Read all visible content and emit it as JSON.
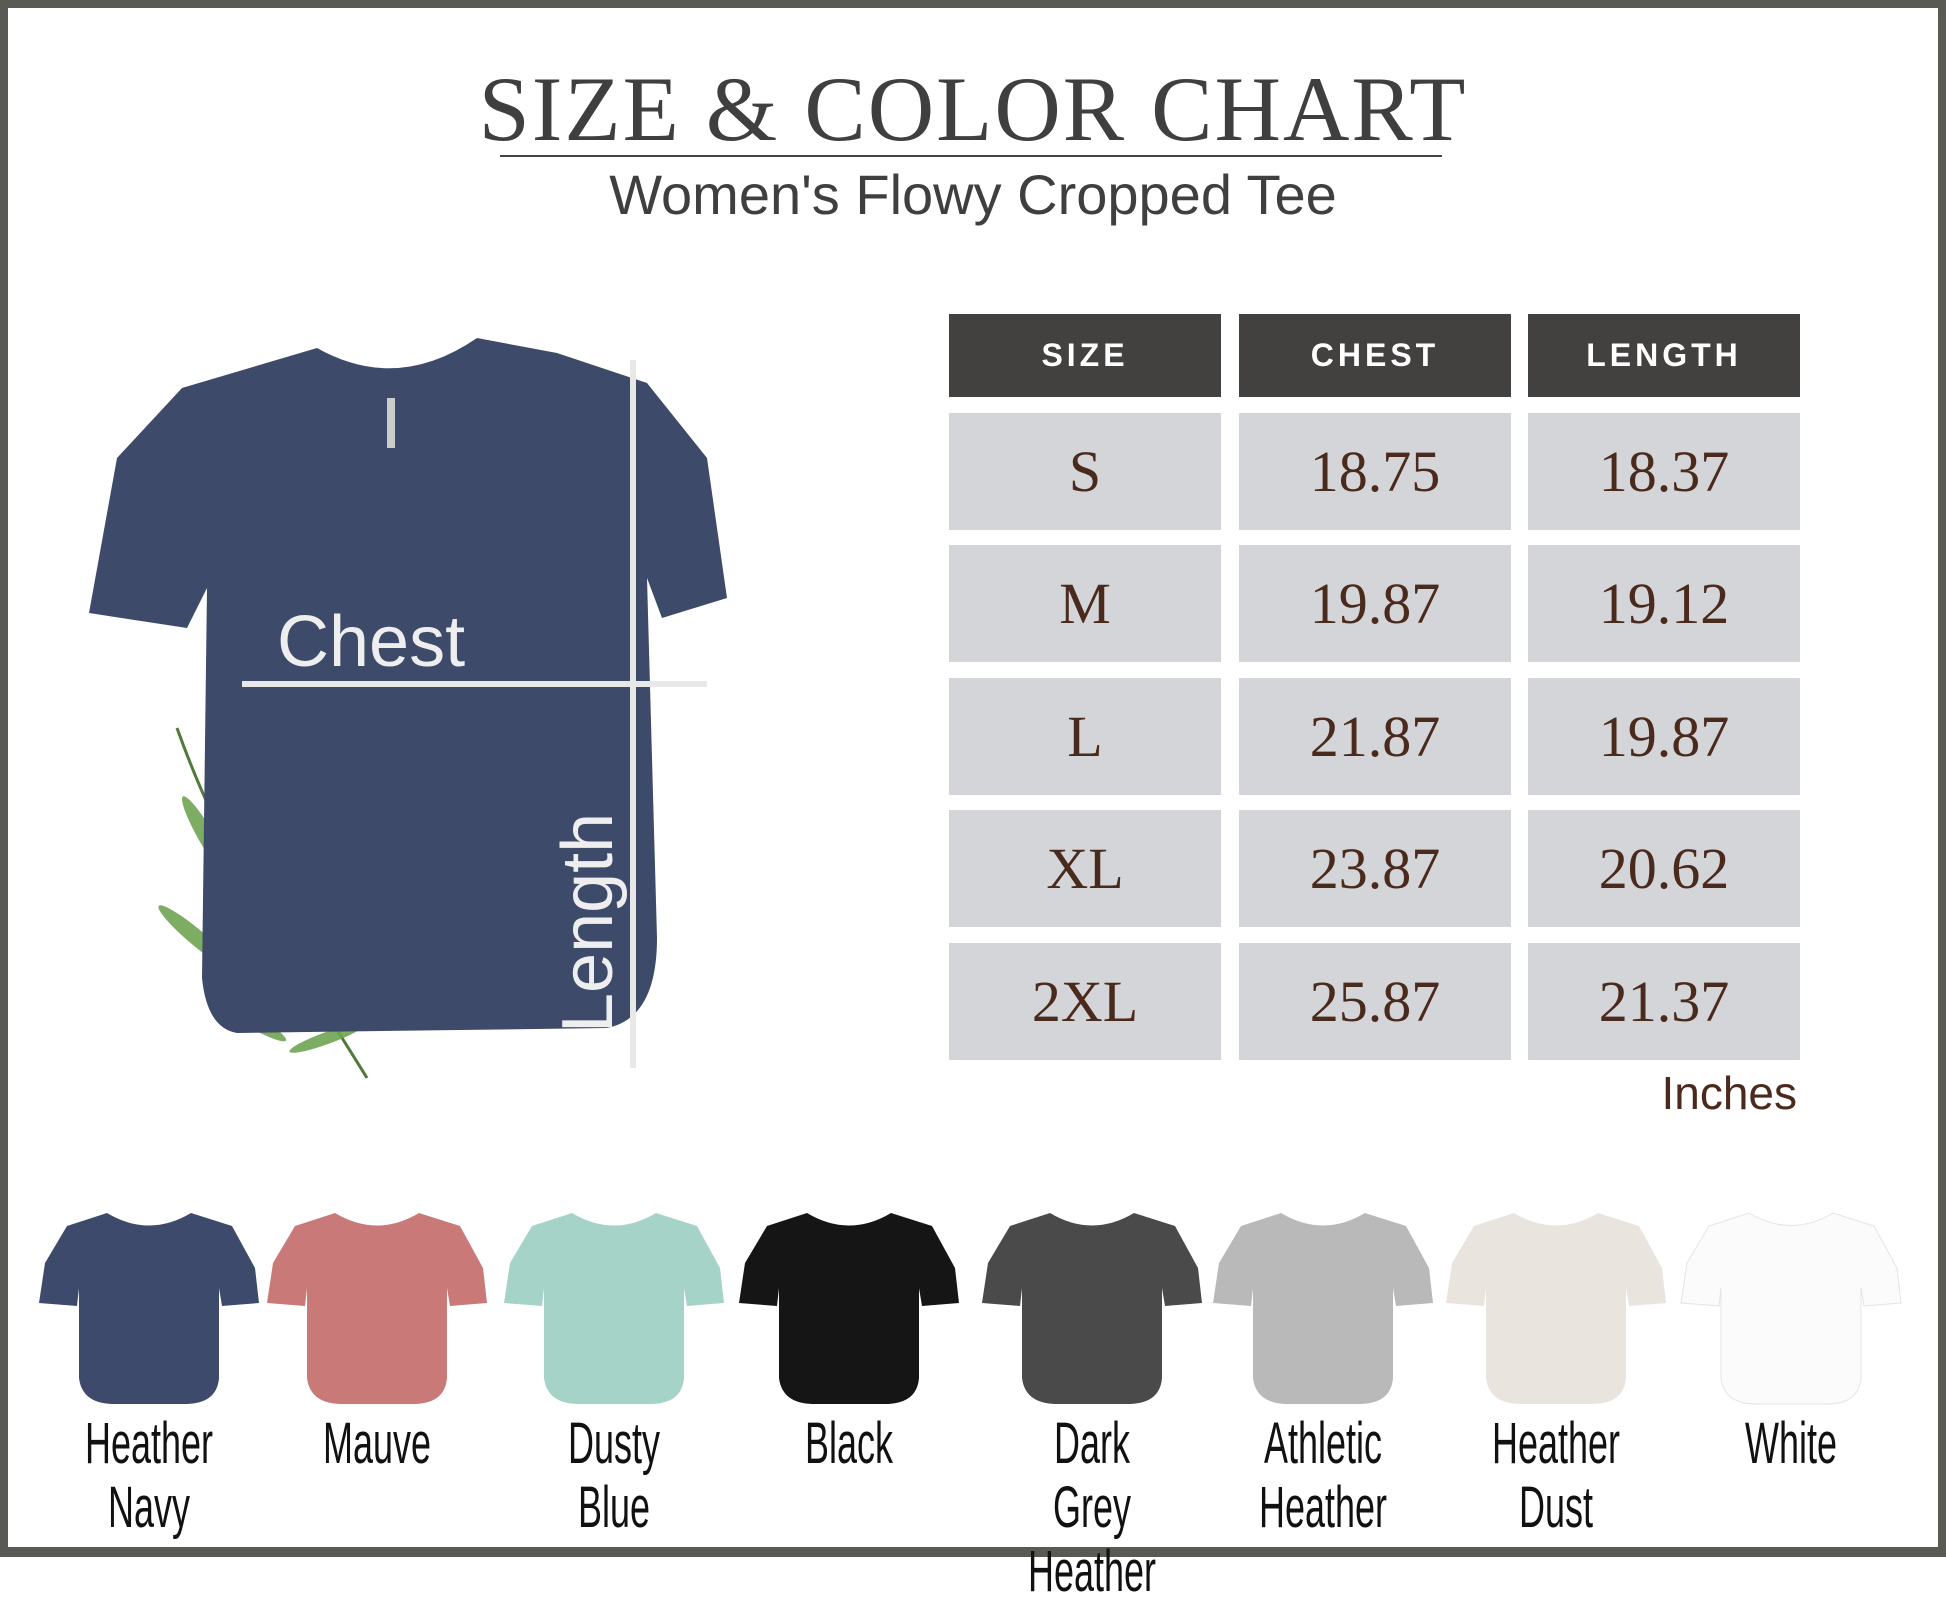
{
  "header": {
    "title": "SIZE & COLOR CHART",
    "subtitle": "Women's Flowy Cropped Tee"
  },
  "diagram": {
    "chest_label": "Chest",
    "length_label": "Length",
    "shirt_color": "#3e4a6a"
  },
  "size_table": {
    "columns": [
      "SIZE",
      "CHEST",
      "LENGTH"
    ],
    "rows": [
      [
        "S",
        "18.75",
        "18.37"
      ],
      [
        "M",
        "19.87",
        "19.12"
      ],
      [
        "L",
        "21.87",
        "19.87"
      ],
      [
        "XL",
        "23.87",
        "20.62"
      ],
      [
        "2XL",
        "25.87",
        "21.37"
      ]
    ],
    "unit": "Inches"
  },
  "colors": [
    {
      "line1": "Heather",
      "line2": "Navy",
      "hex": "#3d4a6b"
    },
    {
      "line1": "Mauve",
      "line2": "",
      "hex": "#c97a78"
    },
    {
      "line1": "Dusty",
      "line2": "Blue",
      "hex": "#a6d3c8"
    },
    {
      "line1": "Black",
      "line2": "",
      "hex": "#151515"
    },
    {
      "line1": "Dark Grey",
      "line2": "Heather",
      "hex": "#4a4a4a"
    },
    {
      "line1": "Athletic",
      "line2": "Heather",
      "hex": "#b9b9b9"
    },
    {
      "line1": "Heather",
      "line2": "Dust",
      "hex": "#e9e5de"
    },
    {
      "line1": "White",
      "line2": "",
      "hex": "#fbfbfb"
    }
  ]
}
